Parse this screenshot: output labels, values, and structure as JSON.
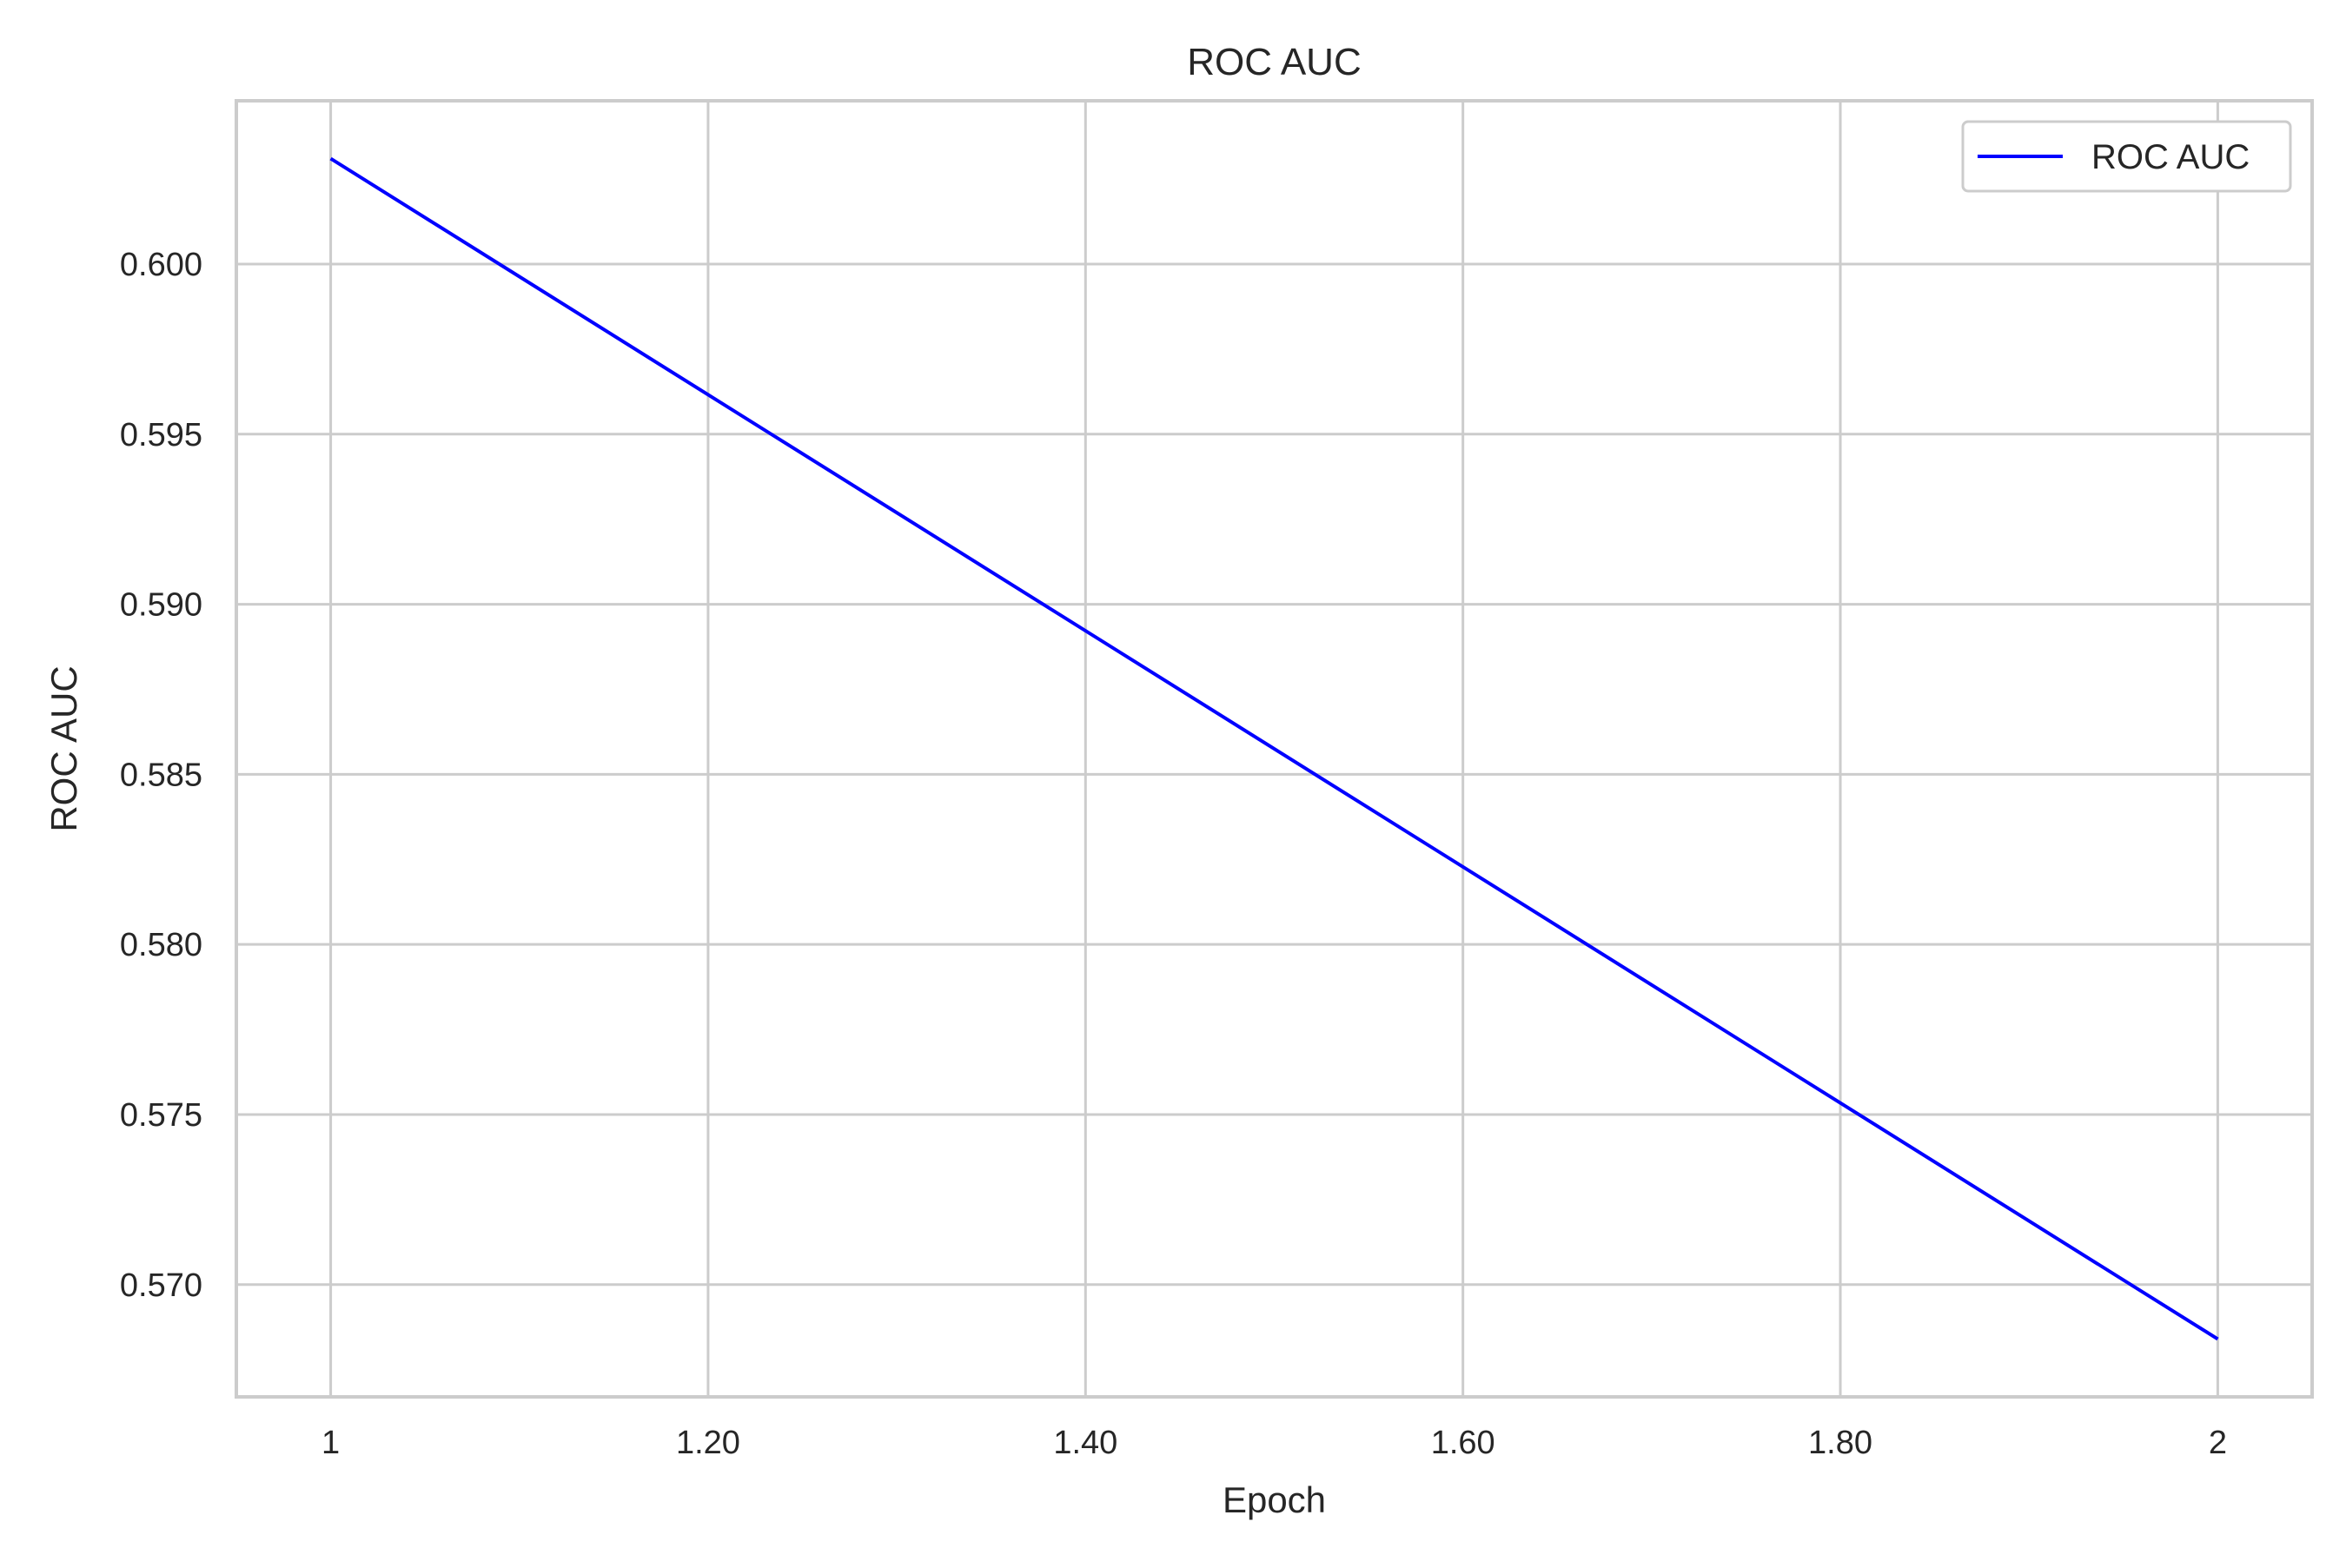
{
  "chart_data": {
    "type": "line",
    "title": "ROC AUC",
    "xlabel": "Epoch",
    "ylabel": "ROC AUC",
    "xlim": [
      0.95,
      2.05
    ],
    "ylim": [
      0.5667,
      0.6048
    ],
    "grid": true,
    "legend": {
      "position": "top-right"
    },
    "x_ticks": [
      {
        "value": 1,
        "label": "1"
      },
      {
        "value": 1.2,
        "label": "1.20"
      },
      {
        "value": 1.4,
        "label": "1.40"
      },
      {
        "value": 1.6,
        "label": "1.60"
      },
      {
        "value": 1.8,
        "label": "1.80"
      },
      {
        "value": 2,
        "label": "2"
      }
    ],
    "y_ticks": [
      {
        "value": 0.57,
        "label": "0.570"
      },
      {
        "value": 0.575,
        "label": "0.575"
      },
      {
        "value": 0.58,
        "label": "0.580"
      },
      {
        "value": 0.585,
        "label": "0.585"
      },
      {
        "value": 0.59,
        "label": "0.590"
      },
      {
        "value": 0.595,
        "label": "0.595"
      },
      {
        "value": 0.6,
        "label": "0.600"
      }
    ],
    "series": [
      {
        "name": "ROC AUC",
        "color": "#0000ff",
        "x": [
          1,
          2
        ],
        "values": [
          0.6031,
          0.5684
        ]
      }
    ]
  }
}
